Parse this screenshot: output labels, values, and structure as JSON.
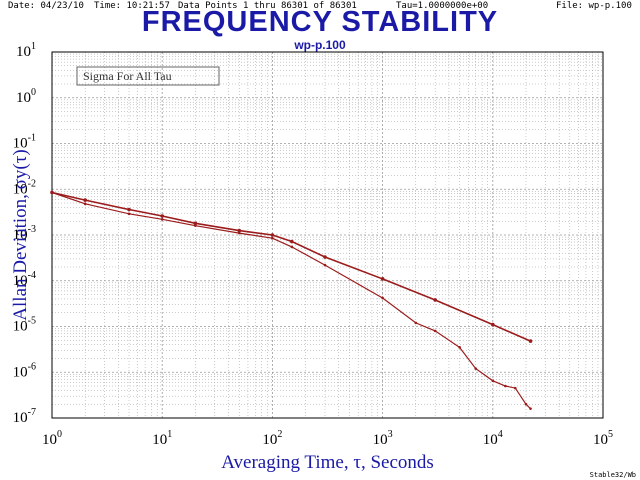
{
  "header": {
    "date": "Date: 04/23/10",
    "time": "Time: 10:21:57",
    "data_points": "Data Points 1 thru 86301 of 86301",
    "tau": "Tau=1.0000000e+00",
    "file": "File: wp-p.100"
  },
  "footer": {
    "software": "Stable32/Wb"
  },
  "colors": {
    "title": "#1a1aa6",
    "curve": "#9b1c1c",
    "axis_label": "#1a1aa6"
  },
  "chart_data": {
    "type": "line",
    "title": "FREQUENCY STABILITY",
    "subtitle": "wp-p.100",
    "annotation": "Sigma For All Tau",
    "xlabel": "Averaging Time, τ, Seconds",
    "ylabel": "Allan Deviation, σy(τ)",
    "xscale": "log",
    "yscale": "log",
    "xlim": [
      1,
      100000
    ],
    "ylim": [
      1e-07,
      10
    ],
    "x_ticks": [
      {
        "base": "10",
        "exp": "0"
      },
      {
        "base": "10",
        "exp": "1"
      },
      {
        "base": "10",
        "exp": "2"
      },
      {
        "base": "10",
        "exp": "3"
      },
      {
        "base": "10",
        "exp": "4"
      },
      {
        "base": "10",
        "exp": "5"
      }
    ],
    "y_ticks": [
      {
        "base": "10",
        "exp": "1"
      },
      {
        "base": "10",
        "exp": "0"
      },
      {
        "base": "10",
        "exp": "-1"
      },
      {
        "base": "10",
        "exp": "-2"
      },
      {
        "base": "10",
        "exp": "-3"
      },
      {
        "base": "10",
        "exp": "-4"
      },
      {
        "base": "10",
        "exp": "-5"
      },
      {
        "base": "10",
        "exp": "-6"
      },
      {
        "base": "10",
        "exp": "-7"
      }
    ],
    "grid": true,
    "series": [
      {
        "marker": "circle",
        "x": [
          1,
          2,
          5,
          10,
          20,
          50,
          100,
          150,
          300,
          1000,
          3000,
          10000,
          22000
        ],
        "y": [
          0.0085,
          0.0058,
          0.0036,
          0.0026,
          0.0018,
          0.00125,
          0.001,
          0.00072,
          0.00033,
          0.00011,
          3.8e-05,
          1.1e-05,
          4.8e-06
        ]
      },
      {
        "marker": "line",
        "x": [
          1,
          2,
          5,
          10,
          20,
          50,
          100,
          150,
          300,
          1000,
          2000,
          3000,
          5000,
          7000,
          10000,
          13000,
          16000,
          20000,
          22000
        ],
        "y": [
          0.0085,
          0.0048,
          0.0029,
          0.0022,
          0.0016,
          0.0011,
          0.00085,
          0.00055,
          0.00022,
          4.2e-05,
          1.2e-05,
          8e-06,
          3.5e-06,
          1.2e-06,
          6.5e-07,
          5e-07,
          4.5e-07,
          2e-07,
          1.6e-07
        ]
      }
    ]
  }
}
